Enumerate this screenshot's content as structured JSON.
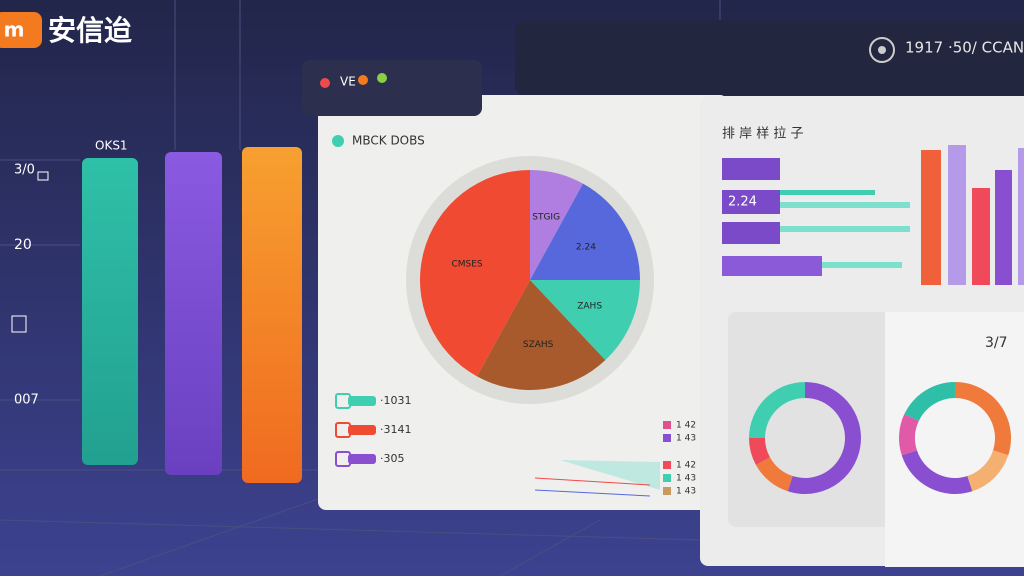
{
  "logo": {
    "badge": "m",
    "name": "安信迨"
  },
  "left_labels": [
    "OKS1",
    "3/0",
    "20",
    "007"
  ],
  "window": {
    "title": "VE"
  },
  "header_right": {
    "text": "1917 ·50/ CCAN"
  },
  "pie_panel": {
    "title": "MBCK DOBS",
    "pie": {
      "slices": [
        "STGIG",
        "2.24",
        "ZAHS",
        "SZAHS",
        "CMSES"
      ],
      "values": [
        8,
        17,
        13,
        20,
        42
      ],
      "colors": [
        "#b07ee0",
        "#5668dc",
        "#3fcfb0",
        "#a85a2c",
        "#f04a32"
      ]
    },
    "legend": [
      {
        "label": "·1031",
        "color": "#3fcfb0"
      },
      {
        "label": "·3141",
        "color": "#f04a32"
      },
      {
        "label": "·305",
        "color": "#8a4fd0"
      }
    ],
    "right_legend": [
      "1 42",
      "1 43",
      "1 42",
      "1 43",
      "1 43"
    ]
  },
  "bar_panel": {
    "title": "排 岸 样 拉 子",
    "bar_label": "2.24"
  },
  "donuts": [
    {
      "values": [
        55,
        12,
        8,
        25
      ],
      "colors": [
        "#8a4fd0",
        "#f07a3c",
        "#f04a5a",
        "#3fcfb0"
      ]
    },
    {
      "values": [
        30,
        15,
        25,
        12,
        18
      ],
      "colors": [
        "#f07a3c",
        "#f4b070",
        "#8a4fd0",
        "#e05aa8",
        "#2fbfa8"
      ]
    }
  ],
  "donut_panel": {
    "label": "3/7"
  }
}
